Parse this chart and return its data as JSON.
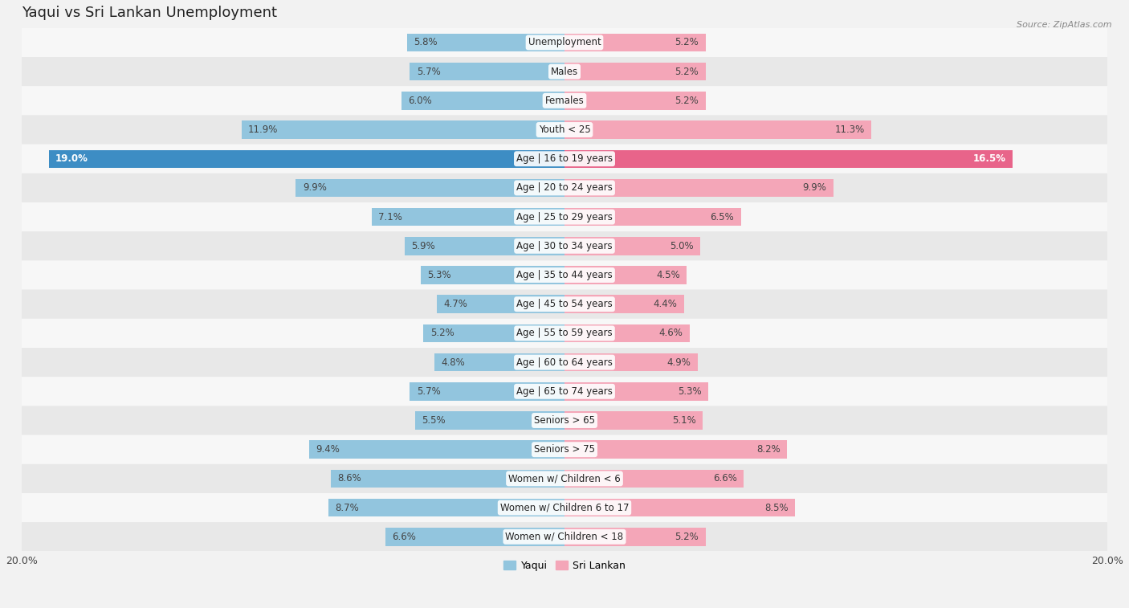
{
  "title": "Yaqui vs Sri Lankan Unemployment",
  "source": "Source: ZipAtlas.com",
  "categories": [
    "Unemployment",
    "Males",
    "Females",
    "Youth < 25",
    "Age | 16 to 19 years",
    "Age | 20 to 24 years",
    "Age | 25 to 29 years",
    "Age | 30 to 34 years",
    "Age | 35 to 44 years",
    "Age | 45 to 54 years",
    "Age | 55 to 59 years",
    "Age | 60 to 64 years",
    "Age | 65 to 74 years",
    "Seniors > 65",
    "Seniors > 75",
    "Women w/ Children < 6",
    "Women w/ Children 6 to 17",
    "Women w/ Children < 18"
  ],
  "yaqui": [
    5.8,
    5.7,
    6.0,
    11.9,
    19.0,
    9.9,
    7.1,
    5.9,
    5.3,
    4.7,
    5.2,
    4.8,
    5.7,
    5.5,
    9.4,
    8.6,
    8.7,
    6.6
  ],
  "srilankan": [
    5.2,
    5.2,
    5.2,
    11.3,
    16.5,
    9.9,
    6.5,
    5.0,
    4.5,
    4.4,
    4.6,
    4.9,
    5.3,
    5.1,
    8.2,
    6.6,
    8.5,
    5.2
  ],
  "yaqui_color": "#92c5de",
  "srilankan_color": "#f4a6b8",
  "highlight_yaqui_color": "#3d8dc4",
  "highlight_srilankan_color": "#e8648a",
  "axis_max": 20.0,
  "bar_height": 0.62,
  "row_colors_even": "#f7f7f7",
  "row_colors_odd": "#e8e8e8",
  "legend_yaqui": "Yaqui",
  "legend_srilankan": "Sri Lankan",
  "title_fontsize": 13,
  "label_fontsize": 8.5,
  "value_fontsize": 8.5,
  "axis_tick_fontsize": 9
}
